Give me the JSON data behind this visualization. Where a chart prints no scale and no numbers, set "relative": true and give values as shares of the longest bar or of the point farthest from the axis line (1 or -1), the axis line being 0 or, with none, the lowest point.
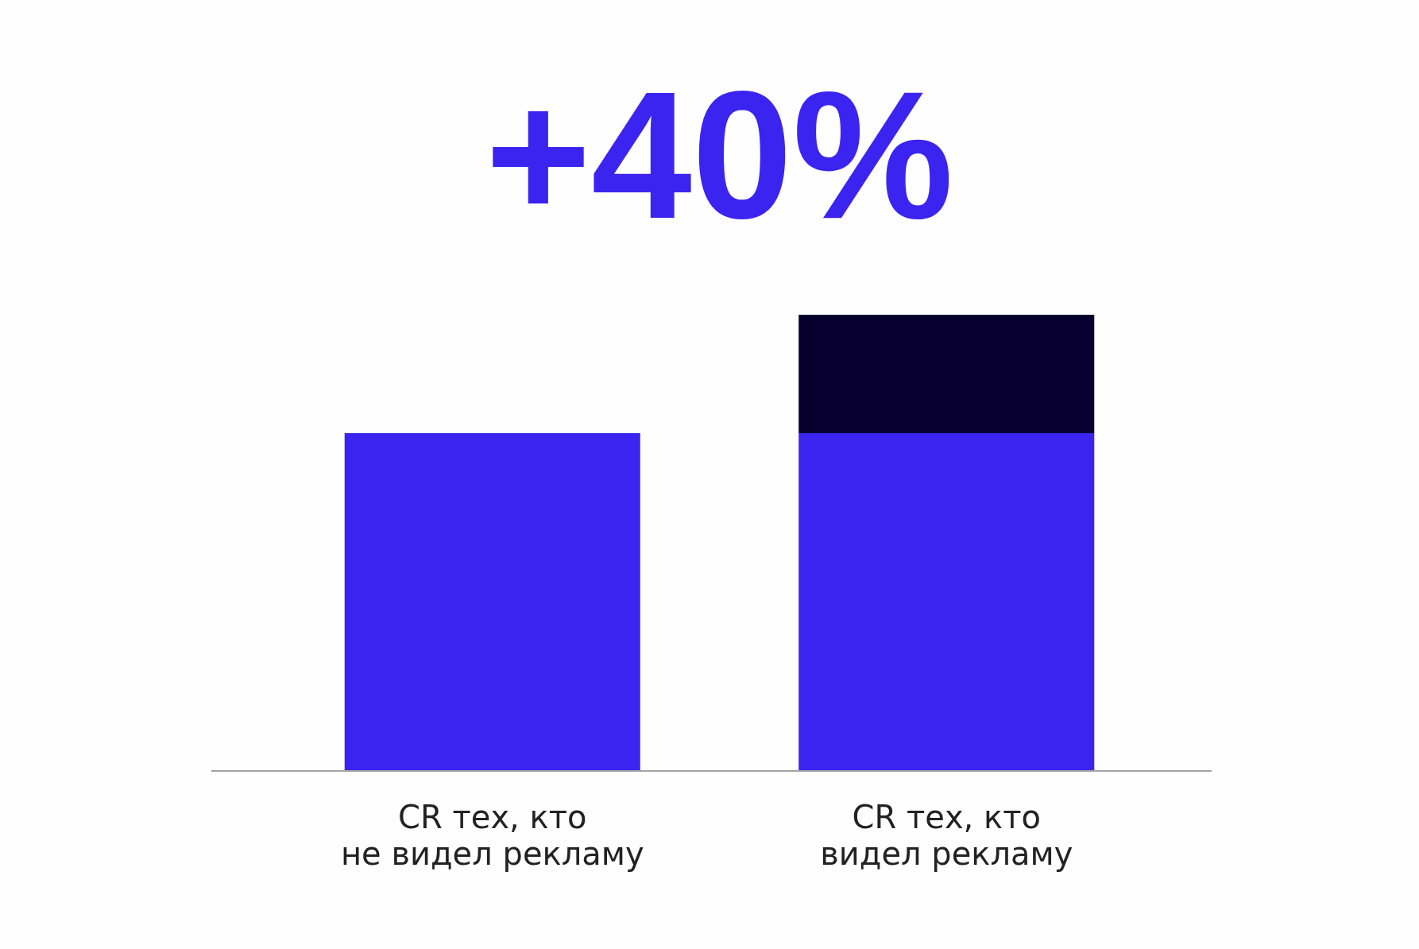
{
  "chart_data": {
    "type": "bar",
    "title": "+40%",
    "categories": [
      "CR тех, кто\nне видел рекламу",
      "CR тех, кто\nвидел рекламу"
    ],
    "stacked": true,
    "relative": true,
    "series": [
      {
        "color": "#3c24f0",
        "values": [
          0.74,
          0.74
        ]
      },
      {
        "color": "#07002f",
        "values": [
          null,
          0.26
        ]
      }
    ]
  }
}
